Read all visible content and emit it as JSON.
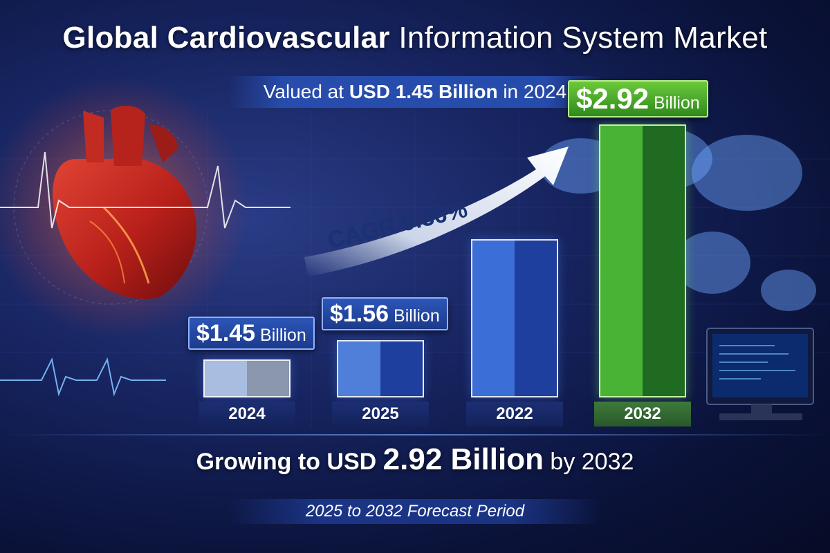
{
  "header": {
    "title_bold": "Global Cardiovascular",
    "title_light": "Information System Market",
    "valued_prefix": "Valued at",
    "valued_amount": "USD 1.45 Billion",
    "valued_suffix": "in 2024"
  },
  "cagr_label": "CAGR 9.36%",
  "footer": {
    "growing_prefix": "Growing to USD",
    "growing_amount": "2.92 Billion",
    "growing_suffix": "by 2032",
    "forecast_period": "2025 to 2032 Forecast Period"
  },
  "colors": {
    "bar_2024": "#a9bde0",
    "bar_2025": "#4f7fd8",
    "bar_2022": "#3b6ed6",
    "bar_2032": "#49b335"
  },
  "chart_data": {
    "type": "bar",
    "categories": [
      "2024",
      "2025",
      "2022",
      "2032"
    ],
    "values": [
      1.45,
      1.56,
      2.2,
      2.92
    ],
    "value_labels": [
      {
        "amount": "$1.45",
        "unit": "Billion"
      },
      {
        "amount": "$1.56",
        "unit": "Billion"
      },
      null,
      {
        "amount": "$2.92",
        "unit": "Billion"
      }
    ],
    "ylim": [
      1.2,
      3.0
    ],
    "grid": false,
    "legend": "none"
  }
}
